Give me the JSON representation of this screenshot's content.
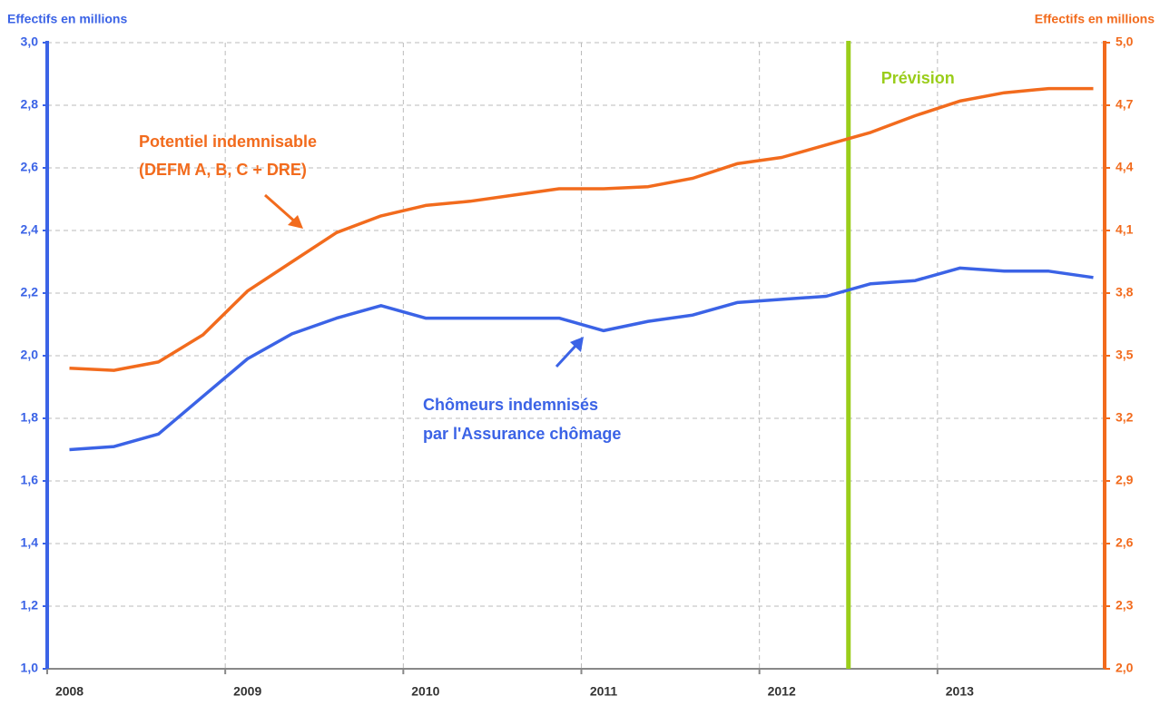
{
  "chart_data": {
    "type": "line",
    "y_title": "Effectifs en millions",
    "y2_title": "Effectifs en millions",
    "categories": [
      "2008",
      null,
      null,
      null,
      "2009",
      null,
      null,
      null,
      "2010",
      null,
      null,
      null,
      "2011",
      null,
      null,
      null,
      "2012",
      null,
      null,
      null,
      "2013",
      null,
      null,
      null
    ],
    "series": [
      {
        "name": "Chômeurs indemnisés par l'Assurance chômage",
        "color": "#3b63e6",
        "axis": "y",
        "values": [
          1.7,
          1.71,
          1.75,
          1.87,
          1.99,
          2.07,
          2.12,
          2.16,
          2.12,
          2.12,
          2.12,
          2.12,
          2.08,
          2.11,
          2.13,
          2.17,
          2.18,
          2.19,
          2.23,
          2.24,
          2.28,
          2.27,
          2.27,
          2.25
        ]
      },
      {
        "name": "Potentiel indemnisable (DEFM A, B, C + DRE)",
        "color": "#f26b1d",
        "axis": "y2",
        "values": [
          3.44,
          3.43,
          3.47,
          3.6,
          3.81,
          3.95,
          4.09,
          4.17,
          4.22,
          4.24,
          4.27,
          4.3,
          4.3,
          4.31,
          4.35,
          4.42,
          4.45,
          4.51,
          4.57,
          4.65,
          4.72,
          4.76,
          4.78,
          4.78
        ]
      }
    ],
    "annotations": {
      "orange_line1": "Potentiel indemnisable",
      "orange_line2": "(DEFM A, B, C + DRE)",
      "blue_line1": "Chômeurs indemnisés",
      "blue_line2": "par l'Assurance chômage"
    },
    "forecast": {
      "label": "Prévision",
      "index": 18,
      "color": "#9acd1a"
    },
    "ylim": [
      1.0,
      3.0
    ],
    "yticks": [
      {
        "value": 1.0,
        "label": "1,0"
      },
      {
        "value": 1.2,
        "label": "1,2"
      },
      {
        "value": 1.4,
        "label": "1,4"
      },
      {
        "value": 1.6,
        "label": "1,6"
      },
      {
        "value": 1.8,
        "label": "1,8"
      },
      {
        "value": 2.0,
        "label": "2,0"
      },
      {
        "value": 2.2,
        "label": "2,2"
      },
      {
        "value": 2.4,
        "label": "2,4"
      },
      {
        "value": 2.6,
        "label": "2,6"
      },
      {
        "value": 2.8,
        "label": "2,8"
      },
      {
        "value": 3.0,
        "label": "3,0"
      }
    ],
    "y2lim": [
      2.0,
      5.0
    ],
    "y2ticks": [
      {
        "value": 2.0,
        "label": "2,0"
      },
      {
        "value": 2.3,
        "label": "2,3"
      },
      {
        "value": 2.6,
        "label": "2,6"
      },
      {
        "value": 2.9,
        "label": "2,9"
      },
      {
        "value": 3.2,
        "label": "3,2"
      },
      {
        "value": 3.5,
        "label": "3,5"
      },
      {
        "value": 3.8,
        "label": "3,8"
      },
      {
        "value": 4.1,
        "label": "4,1"
      },
      {
        "value": 4.4,
        "label": "4,4"
      },
      {
        "value": 4.7,
        "label": "4,7"
      },
      {
        "value": 5.0,
        "label": "5,0"
      }
    ],
    "grid": true
  }
}
